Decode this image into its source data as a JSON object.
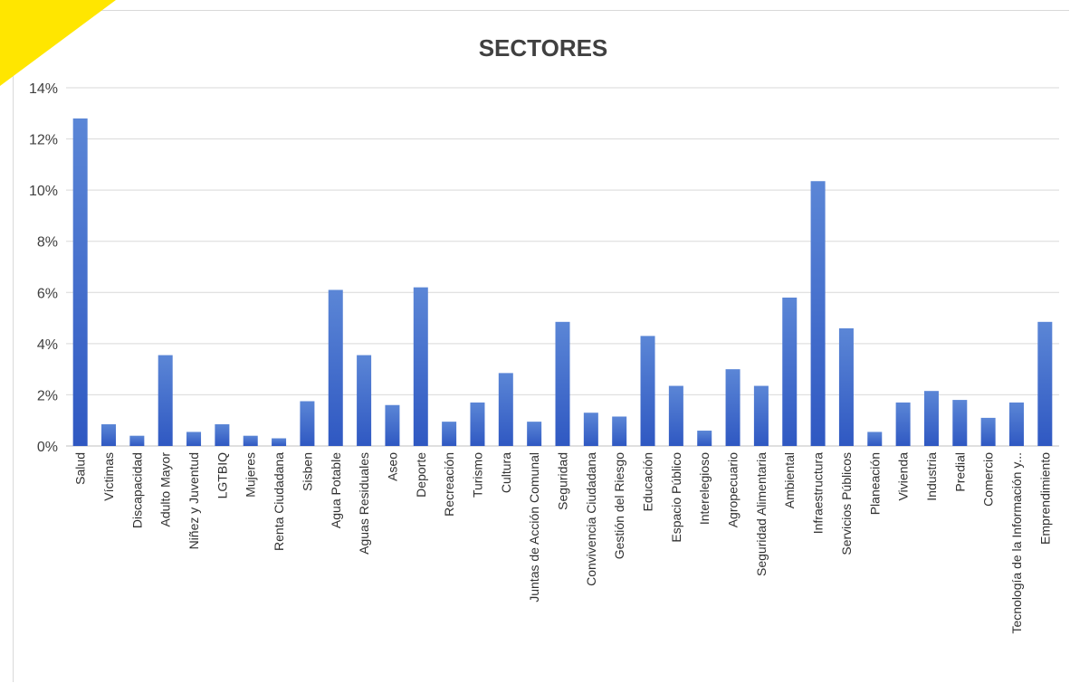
{
  "chart_data": {
    "type": "bar",
    "title": "SECTORES",
    "xlabel": "",
    "ylabel": "",
    "ylim": [
      0,
      14
    ],
    "yticks": [
      "0%",
      "2%",
      "4%",
      "6%",
      "8%",
      "10%",
      "12%",
      "14%"
    ],
    "grid": true,
    "legend": "none",
    "categories": [
      "Salud",
      "Víctimas",
      "Discapacidad",
      "Adulto Mayor",
      "Niñez y Juventud",
      "LGTBIQ",
      "Mujeres",
      "Renta Ciudadana",
      "Sisben",
      "Agua Potable",
      "Aguas Residuales",
      "Aseo",
      "Deporte",
      "Recreación",
      "Turismo",
      "Cultura",
      "Juntas de Acción Comunal",
      "Seguridad",
      "Convivencia Ciudadana",
      "Gestión del Riesgo",
      "Educación",
      "Espacio Público",
      "Interelegioso",
      "Agropecuario",
      "Seguridad Alimentaria",
      "Ambiental",
      "Infraestructura",
      "Servicios Públicos",
      "Planeación",
      "Vivienda",
      "Industria",
      "Predial",
      "Comercio",
      "Tecnología de la Información y...",
      "Emprendimiento"
    ],
    "values": [
      12.8,
      0.85,
      0.4,
      3.55,
      0.55,
      0.85,
      0.4,
      0.3,
      1.75,
      6.1,
      3.55,
      1.6,
      6.2,
      0.95,
      1.7,
      2.85,
      0.95,
      4.85,
      1.3,
      1.15,
      4.3,
      2.35,
      0.6,
      3.0,
      2.35,
      5.8,
      10.35,
      4.6,
      0.55,
      1.7,
      2.15,
      1.8,
      1.1,
      1.7,
      4.85
    ],
    "colors": {
      "bar_top": "#5b86d6",
      "bar_bottom": "#2f58c2",
      "accent": "#ffe600"
    }
  }
}
